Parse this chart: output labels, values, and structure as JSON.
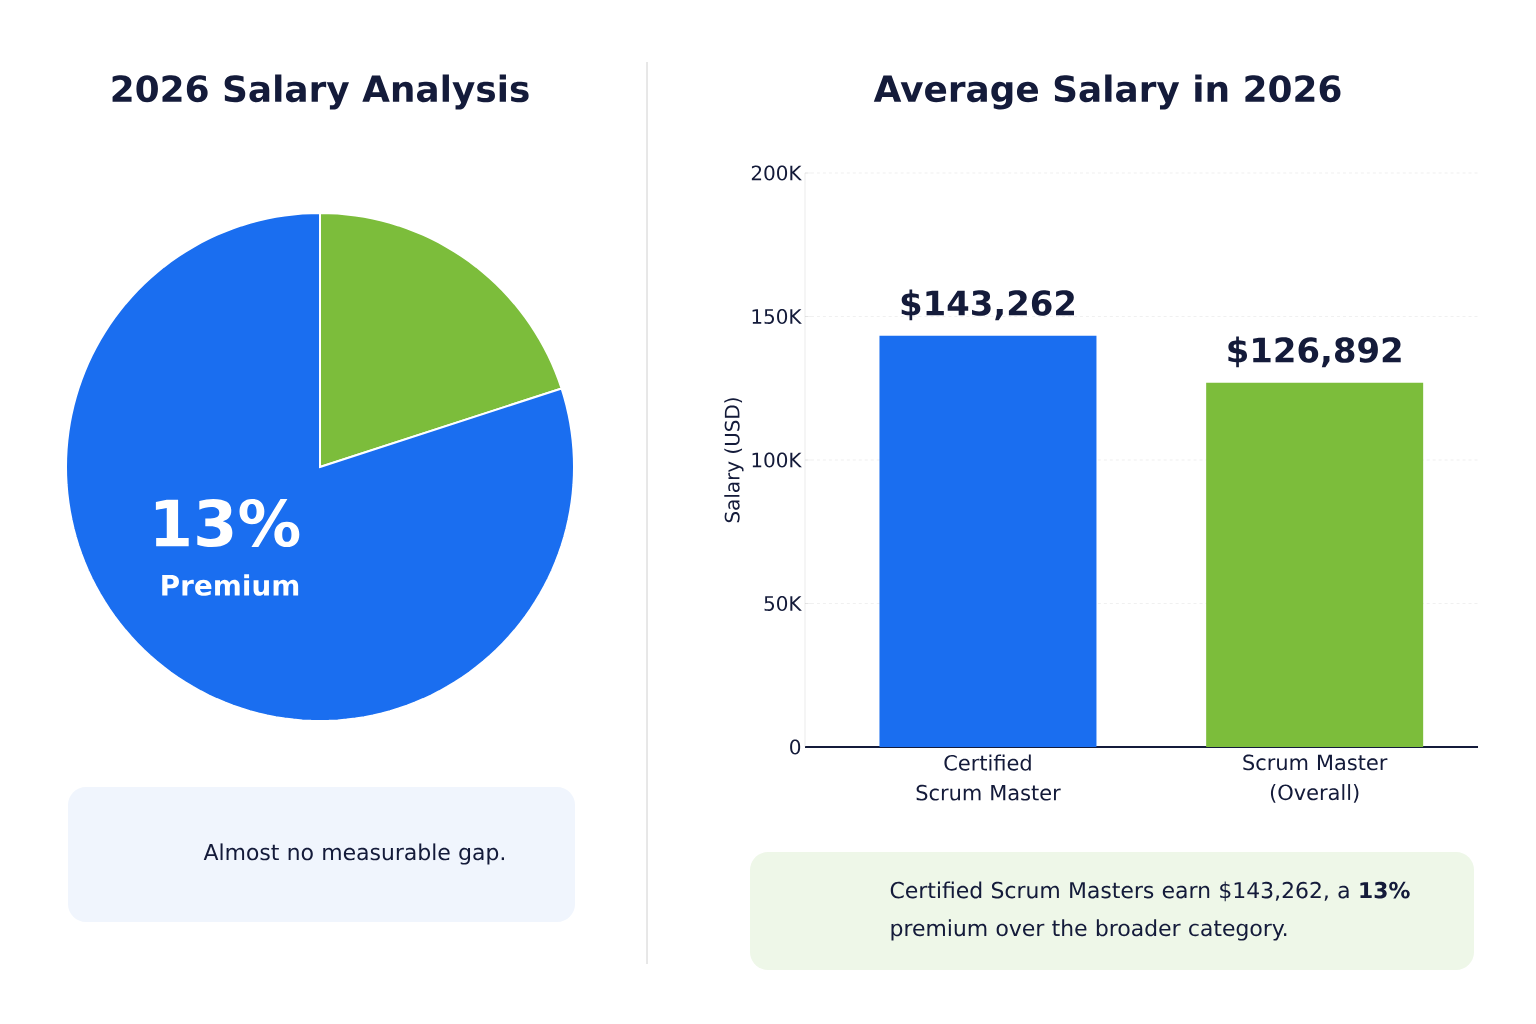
{
  "chart_data": [
    {
      "type": "pie",
      "title": "2026 Salary Analysis",
      "categories": [
        null,
        null
      ],
      "values": [
        20,
        80
      ],
      "colors": [
        "#7cbd3b",
        "#1a6ef0"
      ],
      "annotations": [
        "13%",
        "Premium",
        "Almost no measurable gap."
      ]
    },
    {
      "type": "bar",
      "title": "Average Salary in 2026",
      "ylabel": "Salary (USD)",
      "categories": [
        "Certified Scrum Master",
        "Scrum Master (Overall)"
      ],
      "values": [
        143262,
        126892
      ],
      "colors": [
        "#1a6ef0",
        "#7cbd3b"
      ],
      "value_labels": [
        "$143,262",
        "$126,892"
      ],
      "ylim": [
        0,
        200000
      ],
      "yticks": [
        0,
        {
          "value": 50000,
          "label": "50K"
        },
        {
          "value": 100000,
          "label": "100K"
        },
        {
          "value": 150000,
          "label": "150K"
        },
        {
          "value": 200000,
          "label": "200K"
        }
      ],
      "grid": "y",
      "annotations": [
        "Certified Scrum Masters earn $143,262, a **13%** premium over the broader category."
      ]
    }
  ]
}
